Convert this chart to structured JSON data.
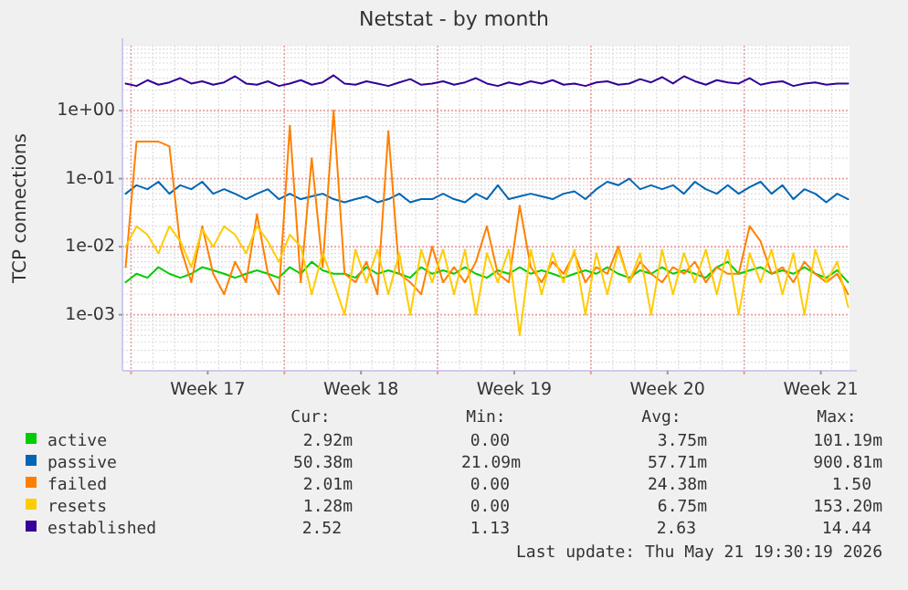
{
  "chart_data": {
    "type": "line",
    "title": "Netstat - by month",
    "ylabel": "TCP connections",
    "log": true,
    "grid": true,
    "legend": "bottom",
    "line_style": "solid",
    "xlim": [
      "2026-04-18T14:30",
      "2026-05-21T19:30"
    ],
    "xticks": [
      {
        "value": "2026-04-19T00:00",
        "label": null
      },
      {
        "value": "2026-04-22T12:00",
        "label": "Week 17"
      },
      {
        "value": "2026-04-26T00:00",
        "label": null
      },
      {
        "value": "2026-04-29T12:00",
        "label": "Week 18"
      },
      {
        "value": "2026-05-03T00:00",
        "label": null
      },
      {
        "value": "2026-05-06T12:00",
        "label": "Week 19"
      },
      {
        "value": "2026-05-10T00:00",
        "label": null
      },
      {
        "value": "2026-05-13T12:00",
        "label": "Week 20"
      },
      {
        "value": "2026-05-17T00:00",
        "label": null
      },
      {
        "value": "2026-05-20T12:00",
        "label": "Week 21"
      }
    ],
    "ylim": [
      0.00015,
      9
    ],
    "yticks": [
      {
        "value": 0.001,
        "label": "1e-03"
      },
      {
        "value": 0.01,
        "label": "1e-02"
      },
      {
        "value": 0.1,
        "label": "1e-01"
      },
      {
        "value": 1,
        "label": "1e+00"
      }
    ],
    "x": [
      "2026-04-18T18:00",
      "2026-04-19T06:00",
      "2026-04-19T18:00",
      "2026-04-20T06:00",
      "2026-04-20T18:00",
      "2026-04-21T06:00",
      "2026-04-21T18:00",
      "2026-04-22T06:00",
      "2026-04-22T18:00",
      "2026-04-23T06:00",
      "2026-04-23T18:00",
      "2026-04-24T06:00",
      "2026-04-24T18:00",
      "2026-04-25T06:00",
      "2026-04-25T18:00",
      "2026-04-26T06:00",
      "2026-04-26T18:00",
      "2026-04-27T06:00",
      "2026-04-27T18:00",
      "2026-04-28T06:00",
      "2026-04-28T18:00",
      "2026-04-29T06:00",
      "2026-04-29T18:00",
      "2026-04-30T06:00",
      "2026-04-30T18:00",
      "2026-05-01T06:00",
      "2026-05-01T18:00",
      "2026-05-02T06:00",
      "2026-05-02T18:00",
      "2026-05-03T06:00",
      "2026-05-03T18:00",
      "2026-05-04T06:00",
      "2026-05-04T18:00",
      "2026-05-05T06:00",
      "2026-05-05T18:00",
      "2026-05-06T06:00",
      "2026-05-06T18:00",
      "2026-05-07T06:00",
      "2026-05-07T18:00",
      "2026-05-08T06:00",
      "2026-05-08T18:00",
      "2026-05-09T06:00",
      "2026-05-09T18:00",
      "2026-05-10T06:00",
      "2026-05-10T18:00",
      "2026-05-11T06:00",
      "2026-05-11T18:00",
      "2026-05-12T06:00",
      "2026-05-12T18:00",
      "2026-05-13T06:00",
      "2026-05-13T18:00",
      "2026-05-14T06:00",
      "2026-05-14T18:00",
      "2026-05-15T06:00",
      "2026-05-15T18:00",
      "2026-05-16T06:00",
      "2026-05-16T18:00",
      "2026-05-17T06:00",
      "2026-05-17T18:00",
      "2026-05-18T06:00",
      "2026-05-18T18:00",
      "2026-05-19T06:00",
      "2026-05-19T18:00",
      "2026-05-20T06:00",
      "2026-05-20T18:00",
      "2026-05-21T06:00",
      "2026-05-21T18:00"
    ],
    "series": [
      {
        "name": "active",
        "color": "#00cc00",
        "values": [
          0.003,
          0.004,
          0.0035,
          0.005,
          0.004,
          0.0035,
          0.004,
          0.005,
          0.0045,
          0.004,
          0.0035,
          0.004,
          0.0045,
          0.004,
          0.0035,
          0.005,
          0.004,
          0.006,
          0.0045,
          0.004,
          0.004,
          0.0035,
          0.005,
          0.004,
          0.0045,
          0.004,
          0.0035,
          0.005,
          0.004,
          0.0045,
          0.004,
          0.005,
          0.004,
          0.0035,
          0.0045,
          0.004,
          0.005,
          0.004,
          0.0045,
          0.004,
          0.0035,
          0.004,
          0.0045,
          0.004,
          0.005,
          0.004,
          0.0035,
          0.0045,
          0.004,
          0.005,
          0.004,
          0.0045,
          0.004,
          0.0035,
          0.005,
          0.006,
          0.004,
          0.0045,
          0.005,
          0.004,
          0.0045,
          0.004,
          0.005,
          0.004,
          0.0035,
          0.0045,
          0.003
        ]
      },
      {
        "name": "passive",
        "color": "#0066b3",
        "values": [
          0.06,
          0.08,
          0.07,
          0.09,
          0.06,
          0.08,
          0.07,
          0.09,
          0.06,
          0.07,
          0.06,
          0.05,
          0.06,
          0.07,
          0.05,
          0.06,
          0.05,
          0.055,
          0.06,
          0.05,
          0.045,
          0.05,
          0.055,
          0.045,
          0.05,
          0.06,
          0.045,
          0.05,
          0.05,
          0.06,
          0.05,
          0.045,
          0.06,
          0.05,
          0.08,
          0.05,
          0.055,
          0.06,
          0.055,
          0.05,
          0.06,
          0.065,
          0.05,
          0.07,
          0.09,
          0.08,
          0.1,
          0.07,
          0.08,
          0.07,
          0.08,
          0.06,
          0.09,
          0.07,
          0.06,
          0.08,
          0.06,
          0.075,
          0.09,
          0.06,
          0.08,
          0.05,
          0.07,
          0.06,
          0.045,
          0.06,
          0.05
        ]
      },
      {
        "name": "failed",
        "color": "#ff8000",
        "values": [
          0.005,
          0.35,
          0.35,
          0.35,
          0.3,
          0.01,
          0.003,
          0.02,
          0.004,
          0.002,
          0.006,
          0.003,
          0.03,
          0.004,
          0.002,
          0.6,
          0.003,
          0.2,
          0.005,
          1.0,
          0.004,
          0.003,
          0.006,
          0.002,
          0.5,
          0.004,
          0.003,
          0.002,
          0.01,
          0.003,
          0.005,
          0.003,
          0.006,
          0.02,
          0.004,
          0.003,
          0.04,
          0.005,
          0.003,
          0.006,
          0.004,
          0.008,
          0.003,
          0.005,
          0.004,
          0.01,
          0.003,
          0.006,
          0.004,
          0.003,
          0.005,
          0.004,
          0.006,
          0.003,
          0.005,
          0.004,
          0.004,
          0.02,
          0.012,
          0.004,
          0.005,
          0.003,
          0.006,
          0.004,
          0.003,
          0.004,
          0.002
        ]
      },
      {
        "name": "resets",
        "color": "#ffcc00",
        "values": [
          0.01,
          0.02,
          0.015,
          0.008,
          0.02,
          0.012,
          0.005,
          0.018,
          0.01,
          0.02,
          0.015,
          0.008,
          0.02,
          0.012,
          0.006,
          0.015,
          0.01,
          0.002,
          0.008,
          0.003,
          0.001,
          0.009,
          0.003,
          0.009,
          0.002,
          0.008,
          0.001,
          0.009,
          0.003,
          0.009,
          0.002,
          0.009,
          0.001,
          0.008,
          0.003,
          0.009,
          0.0005,
          0.009,
          0.002,
          0.008,
          0.003,
          0.009,
          0.001,
          0.008,
          0.002,
          0.009,
          0.003,
          0.008,
          0.001,
          0.009,
          0.002,
          0.008,
          0.003,
          0.009,
          0.002,
          0.009,
          0.001,
          0.008,
          0.003,
          0.009,
          0.002,
          0.008,
          0.001,
          0.009,
          0.003,
          0.006,
          0.0013
        ]
      },
      {
        "name": "established",
        "color": "#330099",
        "values": [
          2.5,
          2.3,
          2.8,
          2.4,
          2.6,
          3.0,
          2.5,
          2.7,
          2.4,
          2.6,
          3.2,
          2.5,
          2.4,
          2.7,
          2.3,
          2.5,
          2.8,
          2.4,
          2.6,
          3.3,
          2.5,
          2.4,
          2.7,
          2.5,
          2.3,
          2.6,
          2.9,
          2.4,
          2.5,
          2.7,
          2.4,
          2.6,
          3.0,
          2.5,
          2.3,
          2.6,
          2.4,
          2.7,
          2.5,
          2.8,
          2.4,
          2.5,
          2.3,
          2.6,
          2.7,
          2.4,
          2.5,
          2.9,
          2.6,
          3.1,
          2.5,
          3.2,
          2.7,
          2.4,
          2.8,
          2.6,
          2.5,
          3.0,
          2.4,
          2.6,
          2.7,
          2.3,
          2.5,
          2.6,
          2.4,
          2.5,
          2.5
        ]
      }
    ],
    "annotations": [
      "Cur:",
      "Min:",
      "Avg:",
      "Max:",
      "2.92m",
      "0.00",
      "3.75m",
      "101.19m",
      "50.38m",
      "21.09m",
      "57.71m",
      "900.81m",
      "2.01m",
      "0.00",
      "24.38m",
      "1.50",
      "1.28m",
      "0.00",
      "6.75m",
      "153.20m",
      "2.52",
      "1.13",
      "2.63",
      "14.44",
      "Last update: Thu May 21 19:30:19 2026"
    ]
  }
}
